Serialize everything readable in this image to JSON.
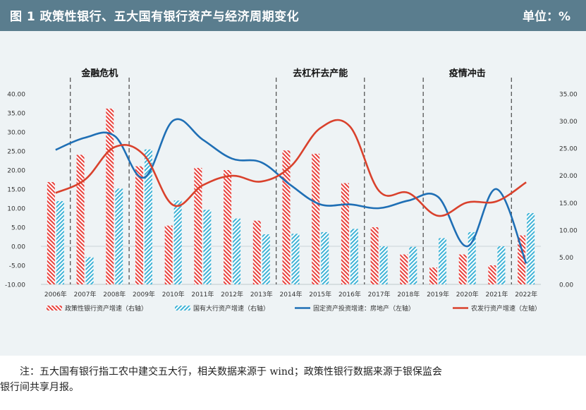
{
  "header": {
    "title": "图 1   政策性银行、五大国有银行资产与经济周期变化",
    "unit": "单位：%"
  },
  "colors": {
    "banner": "#5a7d8e",
    "panel": "#eef3f5",
    "policy": "#e8413c",
    "state": "#3fb3d6",
    "invest": "#1f6fb5",
    "agri": "#d9412c"
  },
  "periods": [
    {
      "label": "金融危机",
      "from": "2007年",
      "to": "2009年"
    },
    {
      "label": "去杠杆去产能",
      "from": "2014年",
      "to": "2017年"
    },
    {
      "label": "疫情冲击",
      "from": "2019年",
      "to": "2022年"
    }
  ],
  "chart_data": {
    "type": "bar+line",
    "categories": [
      "2006年",
      "2007年",
      "2008年",
      "2009年",
      "2010年",
      "2011年",
      "2012年",
      "2013年",
      "2014年",
      "2015年",
      "2016年",
      "2017年",
      "2018年",
      "2019年",
      "2020年",
      "2021年",
      "2022年"
    ],
    "left_axis": {
      "ylim": [
        -10,
        40
      ],
      "ticks": [
        "40.00",
        "35.00",
        "30.00",
        "25.00",
        "20.00",
        "15.00",
        "10.00",
        "5.00",
        "0.00",
        "-5.00",
        "-10.00"
      ]
    },
    "right_axis": {
      "ylim": [
        0,
        35
      ],
      "ticks": [
        "35.00",
        "30.00",
        "25.00",
        "20.00",
        "15.00",
        "10.00",
        "5.00",
        "0.00"
      ]
    },
    "series": [
      {
        "name": "政策性银行资产增速（右轴）",
        "type": "bar",
        "axis": "right",
        "values": [
          18.8,
          23.8,
          32.3,
          21.7,
          10.8,
          21.4,
          21.0,
          11.7,
          24.6,
          24.0,
          18.6,
          10.5,
          5.5,
          3.1,
          5.5,
          3.5,
          9.0
        ]
      },
      {
        "name": "国有大行资产增速（右轴）",
        "type": "bar",
        "axis": "right",
        "values": [
          15.3,
          5.0,
          17.6,
          24.8,
          15.4,
          13.7,
          12.1,
          9.2,
          9.3,
          9.6,
          10.2,
          7.0,
          6.9,
          8.5,
          9.6,
          7.0,
          13.1
        ]
      },
      {
        "name": "固定资产投资增速：房地产（左轴）",
        "type": "line",
        "axis": "left",
        "values": [
          25.3,
          28.5,
          29.0,
          18.0,
          33.0,
          28.0,
          23.0,
          22.0,
          16.0,
          11.0,
          11.0,
          10.0,
          12.0,
          13.0,
          0.0,
          15.0,
          -4.5
        ]
      },
      {
        "name": "农发行资产增速（左轴）",
        "type": "line",
        "axis": "left",
        "values": [
          14.0,
          17.5,
          26.0,
          24.0,
          10.8,
          16.0,
          18.5,
          17.0,
          21.0,
          31.0,
          31.5,
          14.5,
          14.0,
          8.0,
          11.5,
          11.8,
          16.8
        ]
      }
    ]
  },
  "legend": [
    "政策性银行资产增速（右轴）",
    "国有大行资产增速（右轴）",
    "固定资产投资增速：房地产（左轴）",
    "农发行资产增速（左轴）"
  ],
  "note": {
    "line1": "注：五大国有银行指工农中建交五大行，相关数据来源于 wind；政策性银行数据来源于银保监会",
    "line2": "银行间共享月报。"
  }
}
